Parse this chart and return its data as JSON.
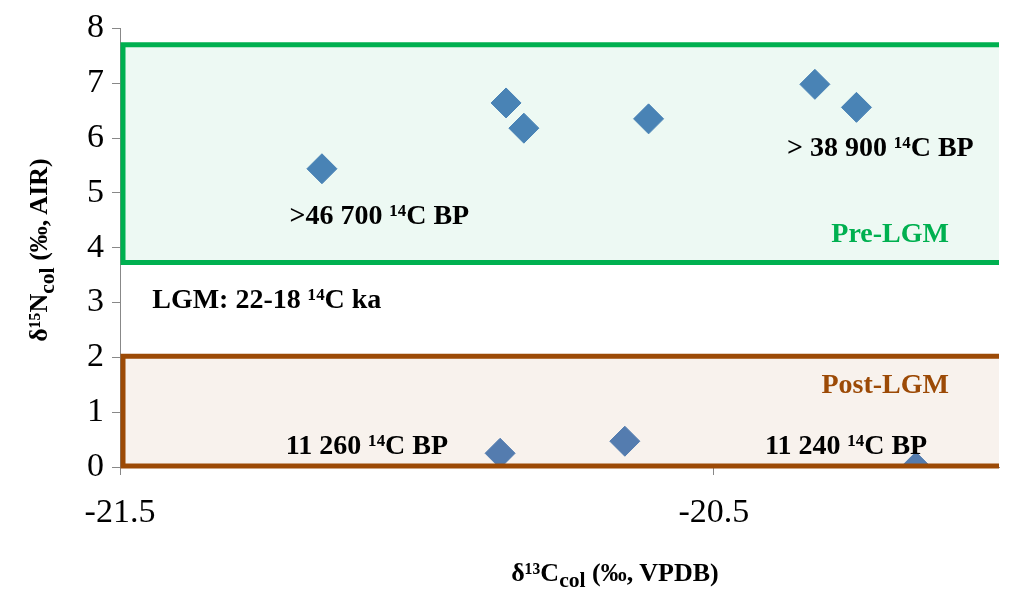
{
  "chart_data": {
    "type": "scatter",
    "xlabel": "δ¹³C$_{col}$ (‰, VPDB)",
    "ylabel": "δ¹⁵N$_{col}$ (‰, AIR)",
    "series": [
      {
        "color": "#4f81bd",
        "x": [
          -21.16,
          -20.85,
          -20.82,
          -20.61,
          -20.33,
          -20.26,
          -20.86,
          -20.65,
          -20.16
        ],
        "values": [
          5.44,
          6.64,
          6.18,
          6.35,
          6.98,
          6.56,
          0.25,
          0.47,
          0.0
        ]
      }
    ],
    "marker": "diamond",
    "xlim": [
      -21.5,
      -20.02
    ],
    "xticks": [
      -21.5,
      -20.5
    ],
    "ylim": [
      0,
      8
    ],
    "yticks": [
      0,
      1,
      2,
      3,
      4,
      5,
      6,
      7,
      8
    ],
    "grid": false,
    "legend": false,
    "bands": [
      {
        "axis": "y",
        "from": 3.73,
        "to": 7.7,
        "label": "Pre-LGM",
        "color": "#00b050"
      },
      {
        "axis": "y",
        "from": 0.02,
        "to": 2.02,
        "label": "Post-LGM",
        "color": "#9c4a06"
      }
    ],
    "annotations": [
      ">46 700 ¹⁴C BP",
      "> 38 900 ¹⁴C BP",
      "LGM: 22-18 ¹⁴C ka",
      "11 260 ¹⁴C BP",
      "11 240 ¹⁴C BP"
    ]
  }
}
